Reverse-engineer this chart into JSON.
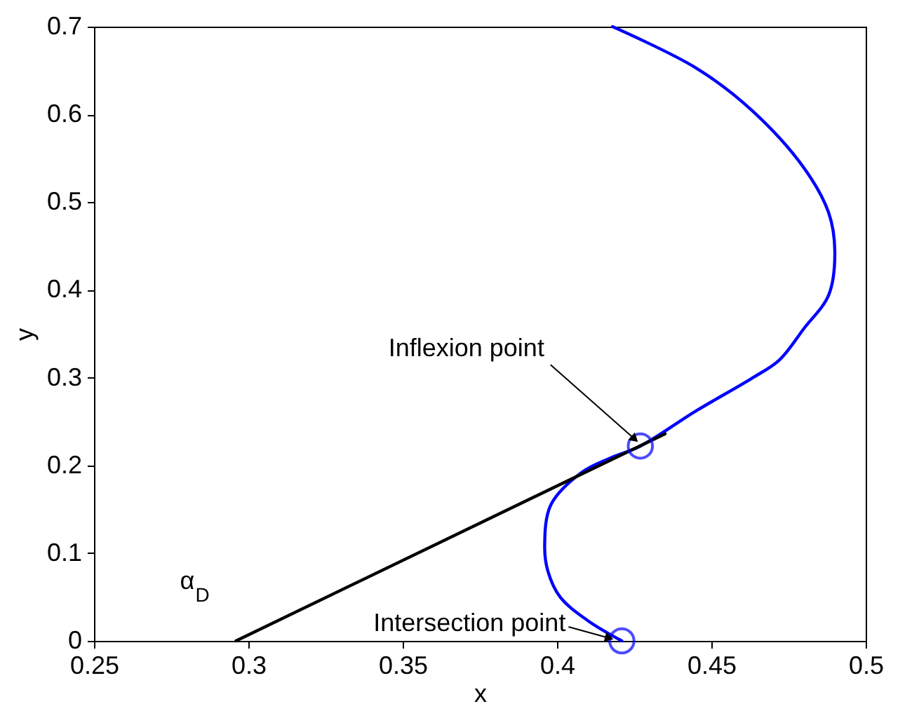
{
  "chart_data": {
    "type": "line",
    "xlabel": "x",
    "ylabel": "y",
    "xlim": [
      0.25,
      0.5
    ],
    "ylim": [
      0,
      0.7
    ],
    "xticks": [
      0.25,
      0.3,
      0.35,
      0.4,
      0.45,
      0.5
    ],
    "yticks": [
      0,
      0.1,
      0.2,
      0.3,
      0.4,
      0.5,
      0.6,
      0.7
    ],
    "grid": false,
    "series": [
      {
        "color": "#0000ff",
        "x": [
          0.421,
          0.41,
          0.401,
          0.397,
          0.396,
          0.398,
          0.408,
          0.417,
          0.427,
          0.445,
          0.463,
          0.472,
          0.48,
          0.488,
          0.49,
          0.488,
          0.48,
          0.463,
          0.445,
          0.418
        ],
        "values": [
          0,
          0.023,
          0.05,
          0.08,
          0.108,
          0.155,
          0.192,
          0.208,
          0.222,
          0.262,
          0.299,
          0.32,
          0.356,
          0.394,
          0.444,
          0.488,
          0.539,
          0.605,
          0.653,
          0.7
        ]
      },
      {
        "type": "line",
        "color": "#000000",
        "x": [
          0.296,
          0.435
        ],
        "values": [
          0,
          0.236
        ]
      },
      {
        "type": "scatter",
        "color": "#0000ff",
        "marker": "circle",
        "x": [
          0.427,
          0.421
        ],
        "values": [
          0.222,
          0
        ]
      }
    ],
    "annotations": [
      {
        "text": "Inflexion point",
        "x": 0.427,
        "y": 0.222
      },
      {
        "text": "Intersection point",
        "x": 0.421,
        "y": 0
      },
      {
        "text": "α$_{D}$",
        "x": 0.296,
        "y": 0
      }
    ]
  }
}
